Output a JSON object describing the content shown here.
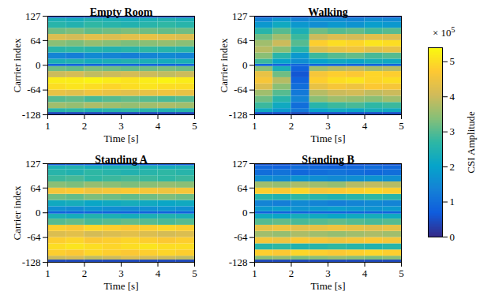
{
  "chart_data": [
    {
      "type": "heatmap",
      "title": "Empty Room",
      "xlabel": "Time [s]",
      "ylabel": "Carrier index",
      "xlim": [
        1,
        5
      ],
      "xticks": [
        1,
        2,
        3,
        4,
        5
      ],
      "ylim": [
        -128,
        127
      ],
      "yticks": [
        -128,
        -64,
        0,
        64,
        127
      ],
      "time_edges": [
        1,
        1.5,
        2,
        2.5,
        3,
        3.5,
        4,
        4.5,
        5
      ],
      "carrier_edges": [
        -128,
        -122,
        -112,
        -96,
        -80,
        -64,
        -48,
        -32,
        -16,
        -3,
        3,
        16,
        32,
        48,
        64,
        80,
        96,
        112,
        122,
        127
      ],
      "cells": [
        [
          0.4,
          0.4,
          0.4,
          0.4,
          0.4,
          0.4,
          0.4,
          0.4
        ],
        [
          2.6,
          2.7,
          2.5,
          2.6,
          2.7,
          2.6,
          2.5,
          2.6
        ],
        [
          3.6,
          3.5,
          3.7,
          3.6,
          3.5,
          3.6,
          3.7,
          3.6
        ],
        [
          3.0,
          3.1,
          2.9,
          3.0,
          3.1,
          3.0,
          2.9,
          3.0
        ],
        [
          4.4,
          4.3,
          4.5,
          4.4,
          4.3,
          4.4,
          4.5,
          4.4
        ],
        [
          5.0,
          5.1,
          5.0,
          4.9,
          5.0,
          5.1,
          5.0,
          5.0
        ],
        [
          5.2,
          5.2,
          5.3,
          5.2,
          5.1,
          5.2,
          5.3,
          5.2
        ],
        [
          4.0,
          4.1,
          3.9,
          4.0,
          4.1,
          4.0,
          3.9,
          4.0
        ],
        [
          3.2,
          3.1,
          3.3,
          3.2,
          3.1,
          3.2,
          3.3,
          3.2
        ],
        [
          0.8,
          0.8,
          0.8,
          0.8,
          0.8,
          0.8,
          0.8,
          0.8
        ],
        [
          2.4,
          2.5,
          2.3,
          2.4,
          2.5,
          2.4,
          2.3,
          2.4
        ],
        [
          1.4,
          1.3,
          1.5,
          1.4,
          1.3,
          1.4,
          1.5,
          1.4
        ],
        [
          2.6,
          2.7,
          2.6,
          2.5,
          2.6,
          2.7,
          2.6,
          2.6
        ],
        [
          3.4,
          3.3,
          3.5,
          3.4,
          3.3,
          3.4,
          3.5,
          3.4
        ],
        [
          4.2,
          4.1,
          4.3,
          4.2,
          4.3,
          4.4,
          4.3,
          4.2
        ],
        [
          3.2,
          3.3,
          3.1,
          3.2,
          3.3,
          3.2,
          3.1,
          3.2
        ],
        [
          2.6,
          2.5,
          2.7,
          2.6,
          2.5,
          2.6,
          2.7,
          2.6
        ],
        [
          2.4,
          2.3,
          2.5,
          2.4,
          2.3,
          2.4,
          2.5,
          2.4
        ],
        [
          0.6,
          0.6,
          0.6,
          0.6,
          0.6,
          0.6,
          0.6,
          0.6
        ]
      ]
    },
    {
      "type": "heatmap",
      "title": "Walking",
      "xlabel": "Time [s]",
      "ylabel": "Carrier index",
      "xlim": [
        1,
        5
      ],
      "xticks": [
        1,
        2,
        3,
        4,
        5
      ],
      "ylim": [
        -128,
        127
      ],
      "yticks": [
        -128,
        -64,
        0,
        64,
        127
      ],
      "time_edges": [
        1,
        1.5,
        2,
        2.5,
        3,
        3.5,
        4,
        4.5,
        5
      ],
      "carrier_edges": [
        -128,
        -122,
        -112,
        -96,
        -80,
        -64,
        -48,
        -32,
        -16,
        -3,
        3,
        16,
        32,
        48,
        64,
        80,
        96,
        112,
        122,
        127
      ],
      "cells": [
        [
          0.5,
          0.5,
          0.4,
          0.5,
          0.5,
          0.5,
          0.5,
          0.5
        ],
        [
          2.2,
          1.8,
          1.2,
          2.0,
          2.2,
          2.1,
          2.3,
          2.2
        ],
        [
          2.8,
          2.2,
          1.0,
          2.6,
          2.8,
          2.9,
          2.7,
          2.8
        ],
        [
          3.2,
          2.6,
          1.4,
          3.4,
          3.6,
          3.5,
          3.4,
          3.6
        ],
        [
          3.6,
          3.0,
          1.2,
          3.8,
          4.0,
          4.1,
          3.9,
          4.0
        ],
        [
          4.2,
          3.4,
          1.0,
          4.4,
          4.6,
          4.5,
          4.7,
          4.6
        ],
        [
          4.6,
          3.8,
          0.8,
          4.8,
          5.0,
          5.1,
          4.9,
          5.0
        ],
        [
          4.4,
          3.2,
          0.6,
          4.6,
          4.8,
          4.7,
          4.9,
          4.8
        ],
        [
          3.4,
          2.4,
          0.8,
          3.6,
          3.8,
          3.9,
          3.7,
          3.8
        ],
        [
          0.8,
          0.8,
          0.8,
          0.8,
          0.8,
          0.8,
          0.8,
          0.8
        ],
        [
          2.8,
          2.0,
          1.6,
          2.0,
          2.2,
          2.1,
          2.3,
          2.2
        ],
        [
          3.4,
          2.6,
          1.8,
          2.8,
          3.0,
          3.1,
          2.9,
          3.0
        ],
        [
          3.8,
          3.4,
          2.6,
          4.2,
          4.4,
          4.5,
          4.3,
          4.4
        ],
        [
          3.6,
          4.0,
          3.0,
          4.8,
          5.0,
          4.9,
          5.1,
          5.0
        ],
        [
          3.2,
          3.6,
          2.8,
          4.0,
          4.2,
          4.1,
          4.3,
          4.2
        ],
        [
          2.6,
          3.0,
          2.4,
          3.2,
          3.0,
          3.1,
          2.9,
          3.0
        ],
        [
          1.8,
          2.2,
          1.8,
          1.6,
          1.8,
          1.7,
          1.9,
          1.8
        ],
        [
          1.4,
          1.8,
          1.4,
          1.6,
          1.5,
          1.4,
          1.6,
          1.5
        ],
        [
          0.6,
          0.6,
          0.6,
          0.6,
          0.6,
          0.6,
          0.6,
          0.6
        ]
      ]
    },
    {
      "type": "heatmap",
      "title": "Standing A",
      "xlabel": "Time [s]",
      "ylabel": "Carrier index",
      "xlim": [
        1,
        5
      ],
      "xticks": [
        1,
        2,
        3,
        4,
        5
      ],
      "ylim": [
        -128,
        127
      ],
      "yticks": [
        -128,
        -64,
        0,
        64,
        127
      ],
      "time_edges": [
        1,
        1.5,
        2,
        2.5,
        3,
        3.5,
        4,
        4.5,
        5
      ],
      "carrier_edges": [
        -128,
        -122,
        -112,
        -96,
        -80,
        -64,
        -48,
        -32,
        -16,
        -3,
        3,
        16,
        32,
        48,
        64,
        80,
        96,
        112,
        122,
        127
      ],
      "cells": [
        [
          0.4,
          0.4,
          0.4,
          0.4,
          0.4,
          0.4,
          0.4,
          0.4
        ],
        [
          4.0,
          4.1,
          3.9,
          4.0,
          4.2,
          4.1,
          4.0,
          3.9
        ],
        [
          4.8,
          4.7,
          4.9,
          4.8,
          4.7,
          4.8,
          4.9,
          4.8
        ],
        [
          5.0,
          5.1,
          5.0,
          4.9,
          5.0,
          5.1,
          5.0,
          5.0
        ],
        [
          4.8,
          4.9,
          4.7,
          4.8,
          4.9,
          4.8,
          4.7,
          4.8
        ],
        [
          4.2,
          4.3,
          4.1,
          4.2,
          4.3,
          4.2,
          4.1,
          4.2
        ],
        [
          4.8,
          4.7,
          4.9,
          4.8,
          4.7,
          4.8,
          4.9,
          4.8
        ],
        [
          3.0,
          3.1,
          2.9,
          3.0,
          3.1,
          3.0,
          2.9,
          3.0
        ],
        [
          2.4,
          2.3,
          2.5,
          2.4,
          2.3,
          2.4,
          2.5,
          2.4
        ],
        [
          0.8,
          0.8,
          0.8,
          0.8,
          0.8,
          0.8,
          0.8,
          0.8
        ],
        [
          1.6,
          1.5,
          1.7,
          1.6,
          1.5,
          1.6,
          1.7,
          1.6
        ],
        [
          2.2,
          2.3,
          2.1,
          2.2,
          2.3,
          2.2,
          2.1,
          2.2
        ],
        [
          3.2,
          3.1,
          3.3,
          3.2,
          3.1,
          3.2,
          3.3,
          3.2
        ],
        [
          4.6,
          4.7,
          4.5,
          4.6,
          4.7,
          4.6,
          4.5,
          4.6
        ],
        [
          3.4,
          3.3,
          3.5,
          3.4,
          3.3,
          3.4,
          3.5,
          3.4
        ],
        [
          2.8,
          2.9,
          2.7,
          2.8,
          2.9,
          2.8,
          2.7,
          2.8
        ],
        [
          2.6,
          2.5,
          2.7,
          2.6,
          2.5,
          2.6,
          2.7,
          2.6
        ],
        [
          2.4,
          2.5,
          2.3,
          2.4,
          2.5,
          2.4,
          2.3,
          2.4
        ],
        [
          0.6,
          0.6,
          0.6,
          0.6,
          0.6,
          0.6,
          0.6,
          0.6
        ]
      ]
    },
    {
      "type": "heatmap",
      "title": "Standing B",
      "xlabel": "Time [s]",
      "ylabel": null,
      "xlim": [
        1,
        5
      ],
      "xticks": [
        1,
        2,
        3,
        4,
        5
      ],
      "ylim": [
        -128,
        127
      ],
      "yticks": [
        -128,
        -64,
        0,
        64,
        127
      ],
      "time_edges": [
        1,
        1.5,
        2,
        2.5,
        3,
        3.5,
        4,
        4.5,
        5
      ],
      "carrier_edges": [
        -128,
        -122,
        -112,
        -96,
        -80,
        -64,
        -48,
        -32,
        -16,
        -3,
        3,
        16,
        32,
        48,
        64,
        80,
        96,
        112,
        122,
        127
      ],
      "cells": [
        [
          0.4,
          0.4,
          0.4,
          0.4,
          0.4,
          0.4,
          0.4,
          0.4
        ],
        [
          3.4,
          3.5,
          3.3,
          3.4,
          3.5,
          3.4,
          3.3,
          3.4
        ],
        [
          4.8,
          4.7,
          4.9,
          4.8,
          4.7,
          4.8,
          4.9,
          4.8
        ],
        [
          2.6,
          2.7,
          2.5,
          2.6,
          2.7,
          2.6,
          2.5,
          2.6
        ],
        [
          4.6,
          4.5,
          4.7,
          4.6,
          4.5,
          4.6,
          4.7,
          4.6
        ],
        [
          3.6,
          3.5,
          3.7,
          3.6,
          3.5,
          3.6,
          3.7,
          3.6
        ],
        [
          4.4,
          4.5,
          4.3,
          4.4,
          4.5,
          4.4,
          4.3,
          4.4
        ],
        [
          3.0,
          3.1,
          2.9,
          3.0,
          3.1,
          3.0,
          2.9,
          3.0
        ],
        [
          2.2,
          2.1,
          2.3,
          2.2,
          2.1,
          2.2,
          2.3,
          2.2
        ],
        [
          0.8,
          0.8,
          0.8,
          0.8,
          0.8,
          0.8,
          0.8,
          0.8
        ],
        [
          1.8,
          1.9,
          1.7,
          1.8,
          1.9,
          1.8,
          1.7,
          1.8
        ],
        [
          1.4,
          1.3,
          1.5,
          1.4,
          1.3,
          1.4,
          1.5,
          1.4
        ],
        [
          2.6,
          2.5,
          2.7,
          2.6,
          2.5,
          2.6,
          2.7,
          2.6
        ],
        [
          4.8,
          4.7,
          4.9,
          4.6,
          4.7,
          4.8,
          4.9,
          4.8
        ],
        [
          3.6,
          3.5,
          3.7,
          3.6,
          3.5,
          3.8,
          3.9,
          3.8
        ],
        [
          1.6,
          1.5,
          1.7,
          1.6,
          1.5,
          1.6,
          1.7,
          1.6
        ],
        [
          1.0,
          1.1,
          0.9,
          1.0,
          1.1,
          1.0,
          0.9,
          1.0
        ],
        [
          0.9,
          0.8,
          1.0,
          0.9,
          0.8,
          0.9,
          1.0,
          0.9
        ],
        [
          0.5,
          0.5,
          0.5,
          0.5,
          0.5,
          0.5,
          0.5,
          0.5
        ]
      ]
    }
  ],
  "colorbar": {
    "label": "CSI Amplitude",
    "range": [
      0,
      5.4
    ],
    "ticks": [
      0,
      1,
      2,
      3,
      4,
      5
    ],
    "multiplier_text": "× 10",
    "multiplier_exponent": 5
  }
}
